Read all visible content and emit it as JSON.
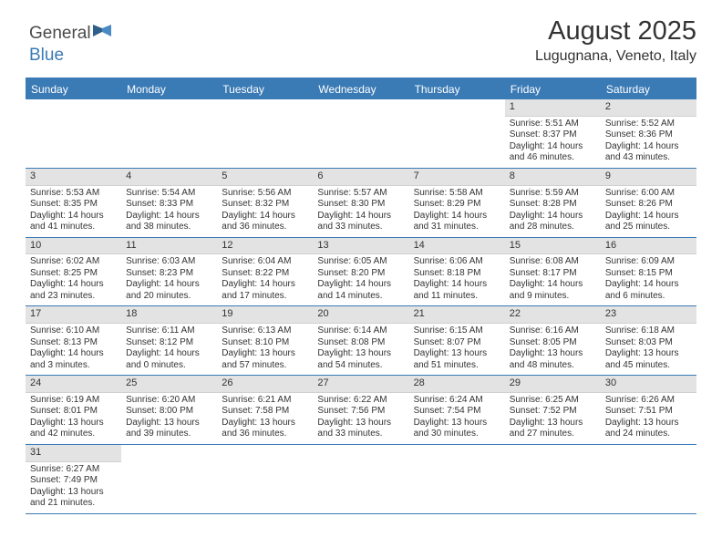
{
  "brand": {
    "general": "General",
    "blue": "Blue"
  },
  "title": "August 2025",
  "location": "Lugugnana, Veneto, Italy",
  "colors": {
    "accent": "#3a7ab5",
    "header_bg": "#e3e3e3",
    "text": "#333333",
    "background": "#ffffff"
  },
  "day_names": [
    "Sunday",
    "Monday",
    "Tuesday",
    "Wednesday",
    "Thursday",
    "Friday",
    "Saturday"
  ],
  "weeks": [
    [
      {
        "empty": true
      },
      {
        "empty": true
      },
      {
        "empty": true
      },
      {
        "empty": true
      },
      {
        "empty": true
      },
      {
        "day": "1",
        "sunrise": "Sunrise: 5:51 AM",
        "sunset": "Sunset: 8:37 PM",
        "daylight1": "Daylight: 14 hours",
        "daylight2": "and 46 minutes."
      },
      {
        "day": "2",
        "sunrise": "Sunrise: 5:52 AM",
        "sunset": "Sunset: 8:36 PM",
        "daylight1": "Daylight: 14 hours",
        "daylight2": "and 43 minutes."
      }
    ],
    [
      {
        "day": "3",
        "sunrise": "Sunrise: 5:53 AM",
        "sunset": "Sunset: 8:35 PM",
        "daylight1": "Daylight: 14 hours",
        "daylight2": "and 41 minutes."
      },
      {
        "day": "4",
        "sunrise": "Sunrise: 5:54 AM",
        "sunset": "Sunset: 8:33 PM",
        "daylight1": "Daylight: 14 hours",
        "daylight2": "and 38 minutes."
      },
      {
        "day": "5",
        "sunrise": "Sunrise: 5:56 AM",
        "sunset": "Sunset: 8:32 PM",
        "daylight1": "Daylight: 14 hours",
        "daylight2": "and 36 minutes."
      },
      {
        "day": "6",
        "sunrise": "Sunrise: 5:57 AM",
        "sunset": "Sunset: 8:30 PM",
        "daylight1": "Daylight: 14 hours",
        "daylight2": "and 33 minutes."
      },
      {
        "day": "7",
        "sunrise": "Sunrise: 5:58 AM",
        "sunset": "Sunset: 8:29 PM",
        "daylight1": "Daylight: 14 hours",
        "daylight2": "and 31 minutes."
      },
      {
        "day": "8",
        "sunrise": "Sunrise: 5:59 AM",
        "sunset": "Sunset: 8:28 PM",
        "daylight1": "Daylight: 14 hours",
        "daylight2": "and 28 minutes."
      },
      {
        "day": "9",
        "sunrise": "Sunrise: 6:00 AM",
        "sunset": "Sunset: 8:26 PM",
        "daylight1": "Daylight: 14 hours",
        "daylight2": "and 25 minutes."
      }
    ],
    [
      {
        "day": "10",
        "sunrise": "Sunrise: 6:02 AM",
        "sunset": "Sunset: 8:25 PM",
        "daylight1": "Daylight: 14 hours",
        "daylight2": "and 23 minutes."
      },
      {
        "day": "11",
        "sunrise": "Sunrise: 6:03 AM",
        "sunset": "Sunset: 8:23 PM",
        "daylight1": "Daylight: 14 hours",
        "daylight2": "and 20 minutes."
      },
      {
        "day": "12",
        "sunrise": "Sunrise: 6:04 AM",
        "sunset": "Sunset: 8:22 PM",
        "daylight1": "Daylight: 14 hours",
        "daylight2": "and 17 minutes."
      },
      {
        "day": "13",
        "sunrise": "Sunrise: 6:05 AM",
        "sunset": "Sunset: 8:20 PM",
        "daylight1": "Daylight: 14 hours",
        "daylight2": "and 14 minutes."
      },
      {
        "day": "14",
        "sunrise": "Sunrise: 6:06 AM",
        "sunset": "Sunset: 8:18 PM",
        "daylight1": "Daylight: 14 hours",
        "daylight2": "and 11 minutes."
      },
      {
        "day": "15",
        "sunrise": "Sunrise: 6:08 AM",
        "sunset": "Sunset: 8:17 PM",
        "daylight1": "Daylight: 14 hours",
        "daylight2": "and 9 minutes."
      },
      {
        "day": "16",
        "sunrise": "Sunrise: 6:09 AM",
        "sunset": "Sunset: 8:15 PM",
        "daylight1": "Daylight: 14 hours",
        "daylight2": "and 6 minutes."
      }
    ],
    [
      {
        "day": "17",
        "sunrise": "Sunrise: 6:10 AM",
        "sunset": "Sunset: 8:13 PM",
        "daylight1": "Daylight: 14 hours",
        "daylight2": "and 3 minutes."
      },
      {
        "day": "18",
        "sunrise": "Sunrise: 6:11 AM",
        "sunset": "Sunset: 8:12 PM",
        "daylight1": "Daylight: 14 hours",
        "daylight2": "and 0 minutes."
      },
      {
        "day": "19",
        "sunrise": "Sunrise: 6:13 AM",
        "sunset": "Sunset: 8:10 PM",
        "daylight1": "Daylight: 13 hours",
        "daylight2": "and 57 minutes."
      },
      {
        "day": "20",
        "sunrise": "Sunrise: 6:14 AM",
        "sunset": "Sunset: 8:08 PM",
        "daylight1": "Daylight: 13 hours",
        "daylight2": "and 54 minutes."
      },
      {
        "day": "21",
        "sunrise": "Sunrise: 6:15 AM",
        "sunset": "Sunset: 8:07 PM",
        "daylight1": "Daylight: 13 hours",
        "daylight2": "and 51 minutes."
      },
      {
        "day": "22",
        "sunrise": "Sunrise: 6:16 AM",
        "sunset": "Sunset: 8:05 PM",
        "daylight1": "Daylight: 13 hours",
        "daylight2": "and 48 minutes."
      },
      {
        "day": "23",
        "sunrise": "Sunrise: 6:18 AM",
        "sunset": "Sunset: 8:03 PM",
        "daylight1": "Daylight: 13 hours",
        "daylight2": "and 45 minutes."
      }
    ],
    [
      {
        "day": "24",
        "sunrise": "Sunrise: 6:19 AM",
        "sunset": "Sunset: 8:01 PM",
        "daylight1": "Daylight: 13 hours",
        "daylight2": "and 42 minutes."
      },
      {
        "day": "25",
        "sunrise": "Sunrise: 6:20 AM",
        "sunset": "Sunset: 8:00 PM",
        "daylight1": "Daylight: 13 hours",
        "daylight2": "and 39 minutes."
      },
      {
        "day": "26",
        "sunrise": "Sunrise: 6:21 AM",
        "sunset": "Sunset: 7:58 PM",
        "daylight1": "Daylight: 13 hours",
        "daylight2": "and 36 minutes."
      },
      {
        "day": "27",
        "sunrise": "Sunrise: 6:22 AM",
        "sunset": "Sunset: 7:56 PM",
        "daylight1": "Daylight: 13 hours",
        "daylight2": "and 33 minutes."
      },
      {
        "day": "28",
        "sunrise": "Sunrise: 6:24 AM",
        "sunset": "Sunset: 7:54 PM",
        "daylight1": "Daylight: 13 hours",
        "daylight2": "and 30 minutes."
      },
      {
        "day": "29",
        "sunrise": "Sunrise: 6:25 AM",
        "sunset": "Sunset: 7:52 PM",
        "daylight1": "Daylight: 13 hours",
        "daylight2": "and 27 minutes."
      },
      {
        "day": "30",
        "sunrise": "Sunrise: 6:26 AM",
        "sunset": "Sunset: 7:51 PM",
        "daylight1": "Daylight: 13 hours",
        "daylight2": "and 24 minutes."
      }
    ],
    [
      {
        "day": "31",
        "sunrise": "Sunrise: 6:27 AM",
        "sunset": "Sunset: 7:49 PM",
        "daylight1": "Daylight: 13 hours",
        "daylight2": "and 21 minutes."
      },
      {
        "empty": true
      },
      {
        "empty": true
      },
      {
        "empty": true
      },
      {
        "empty": true
      },
      {
        "empty": true
      },
      {
        "empty": true
      }
    ]
  ]
}
